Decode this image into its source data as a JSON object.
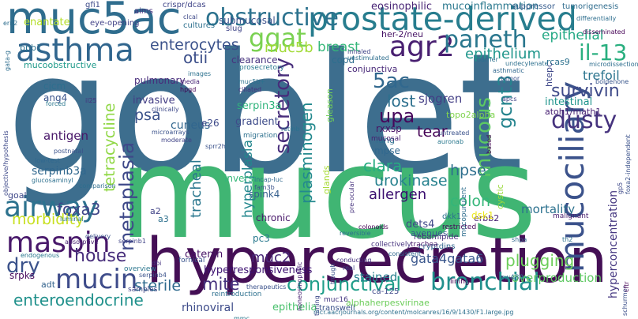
{
  "words": [
    {
      "text": "goblet",
      "color": "#3d6e8e"
    },
    {
      "text": "mucus",
      "color": "#40b573"
    },
    {
      "text": "hypersecretion",
      "color": "#440f55"
    },
    {
      "text": "muc5ac",
      "color": "#2f6d8e"
    },
    {
      "text": "prostate-derived",
      "color": "#277d8e"
    },
    {
      "text": "obstructive",
      "color": "#2c728e"
    },
    {
      "text": "asthma",
      "color": "#31668e"
    },
    {
      "text": "mucociliary",
      "color": "#3b528b"
    },
    {
      "text": "airway",
      "color": "#2c728e"
    },
    {
      "text": "maspin",
      "color": "#48186a"
    },
    {
      "text": "mucin",
      "color": "#3e4c8a"
    },
    {
      "text": "agr2",
      "color": "#481f70"
    },
    {
      "text": "paneth",
      "color": "#2a778e"
    },
    {
      "text": "ggat",
      "color": "#7ad151"
    },
    {
      "text": "bronchial",
      "color": "#21908d"
    },
    {
      "text": "conjunctival",
      "color": "#1f9e89"
    },
    {
      "text": "secretory",
      "color": "#472d7b"
    },
    {
      "text": "metaplasia",
      "color": "#3e4989"
    },
    {
      "text": "dusty",
      "color": "#46337e"
    },
    {
      "text": "il-13",
      "color": "#29af7f"
    },
    {
      "text": "mucous",
      "color": "#5cc863"
    },
    {
      "text": "gcnt3",
      "color": "#25848e"
    },
    {
      "text": "enterocytes",
      "color": "#3b528b"
    },
    {
      "text": "muc5b",
      "color": "#a2da37"
    },
    {
      "text": "breast",
      "color": "#35b779"
    },
    {
      "text": "epithelial",
      "color": "#22a884"
    },
    {
      "text": "epithelium",
      "color": "#1f968b"
    },
    {
      "text": "5ac",
      "color": "#31688e"
    },
    {
      "text": "lost",
      "color": "#2d708e"
    },
    {
      "text": "upa",
      "color": "#46085c"
    },
    {
      "text": "plasminogen",
      "color": "#23898e"
    },
    {
      "text": "tetracycline",
      "color": "#8fd744"
    },
    {
      "text": "otii",
      "color": "#3c4f8a"
    },
    {
      "text": "pulmonary",
      "color": "#472a7a"
    },
    {
      "text": "survivin",
      "color": "#3e4a89"
    },
    {
      "text": "tear",
      "color": "#440154"
    },
    {
      "text": "urokinase",
      "color": "#26818e"
    },
    {
      "text": "clara",
      "color": "#27ad81"
    },
    {
      "text": "allergen",
      "color": "#3b0f70"
    },
    {
      "text": "colon",
      "color": "#34b679"
    },
    {
      "text": "hpse",
      "color": "#2e6f8e"
    },
    {
      "text": "hyperplasia",
      "color": "#24878e"
    },
    {
      "text": "tracheal",
      "color": "#2a778e"
    },
    {
      "text": "foxa3",
      "color": "#404688"
    },
    {
      "text": "morbidity",
      "color": "#c8e020"
    },
    {
      "text": "dry",
      "color": "#3b528b"
    },
    {
      "text": "house",
      "color": "#472d7b"
    },
    {
      "text": "enteroendocrine",
      "color": "#21918c"
    },
    {
      "text": "sterile",
      "color": "#2f6b8e"
    },
    {
      "text": "mite",
      "color": "#46327e"
    },
    {
      "text": "muc2",
      "color": "#482576"
    },
    {
      "text": "plugging",
      "color": "#6ccd5a"
    },
    {
      "text": "stained",
      "color": "#277f8e"
    },
    {
      "text": "gata4gata6",
      "color": "#39568c"
    },
    {
      "text": "overproduction",
      "color": "#5ec962"
    },
    {
      "text": "hyperconcentration",
      "color": "#453781"
    },
    {
      "text": "rhinoviral",
      "color": "#3e4c8a"
    },
    {
      "text": "epithelia",
      "color": "#4ac16d"
    },
    {
      "text": "mortality",
      "color": "#2c718e"
    },
    {
      "text": "trefoil",
      "color": "#2b748e"
    },
    {
      "text": "intestinal",
      "color": "#1f948c"
    },
    {
      "text": "atoh1/math1",
      "color": "#482173"
    },
    {
      "text": "sjogren",
      "color": "#433e85"
    },
    {
      "text": "invasive",
      "color": "#433d84"
    },
    {
      "text": "psa",
      "color": "#3b528b"
    },
    {
      "text": "cuneus",
      "color": "#31668e"
    },
    {
      "text": "serpin3a",
      "color": "#2fb47c"
    },
    {
      "text": "gradient",
      "color": "#3e4c8a"
    },
    {
      "text": "antigen",
      "color": "#481668"
    },
    {
      "text": "serpinb3a",
      "color": "#31688e"
    },
    {
      "text": "enantate",
      "color": "#b5de2b"
    },
    {
      "text": "rxxsp",
      "color": "#471164"
    },
    {
      "text": "mpse",
      "color": "#31688e"
    },
    {
      "text": "spink4",
      "color": "#355f8d"
    },
    {
      "text": "chronic",
      "color": "#48186a"
    },
    {
      "text": "dets4",
      "color": "#3f4788"
    },
    {
      "text": "avenues",
      "color": "#355e8d"
    },
    {
      "text": "inverse",
      "color": "#35b779"
    },
    {
      "text": "pc3",
      "color": "#29798e"
    },
    {
      "text": "a2",
      "color": "#414487"
    },
    {
      "text": "a3",
      "color": "#2d708e"
    },
    {
      "text": "e26",
      "color": "#3e4a89"
    },
    {
      "text": "copd",
      "color": "#2e6e8e"
    },
    {
      "text": "conjunctiva",
      "color": "#482878"
    },
    {
      "text": "clearance",
      "color": "#46327e"
    },
    {
      "text": "her-2/neu",
      "color": "#471365"
    },
    {
      "text": "ang4",
      "color": "#3a548c"
    },
    {
      "text": "cjcm",
      "color": "#2e6f8e"
    },
    {
      "text": "bpb1",
      "color": "#2c718e"
    },
    {
      "text": "mucoobstructive",
      "color": "#1f9a8a"
    },
    {
      "text": "srpks",
      "color": "#46085c"
    },
    {
      "text": "adt",
      "color": "#33638d"
    },
    {
      "text": "goal",
      "color": "#3f4889"
    },
    {
      "text": "eosinophilic",
      "color": "#482475"
    },
    {
      "text": "mucoinflammation",
      "color": "#2a788e"
    },
    {
      "text": "submucosal",
      "color": "#3b518b"
    },
    {
      "text": "topo2alpha",
      "color": "#7fd34e"
    },
    {
      "text": "rcas9",
      "color": "#2c718e"
    },
    {
      "text": "htepc",
      "color": "#3f4889"
    },
    {
      "text": "lung",
      "color": "#2e6e8e"
    },
    {
      "text": "cystic",
      "color": "#9bd93c"
    },
    {
      "text": "erbb2",
      "color": "#482071"
    },
    {
      "text": "dsk1",
      "color": "#eae51a"
    },
    {
      "text": "crispr/dcas",
      "color": "#404588"
    },
    {
      "text": "cultures",
      "color": "#2d708e"
    },
    {
      "text": "catenin",
      "color": "#481467"
    },
    {
      "text": "slug",
      "color": "#404588"
    },
    {
      "text": "aims",
      "color": "#46307e"
    },
    {
      "text": "gfi1",
      "color": "#3e4a89"
    },
    {
      "text": "eye-opening",
      "color": "#414287"
    },
    {
      "text": "suppressor",
      "color": "#365c8d"
    },
    {
      "text": "tumorigenesis",
      "color": "#2f6c8e"
    },
    {
      "text": "restricted",
      "color": "#46075a"
    },
    {
      "text": "dkk1",
      "color": "#2c728e"
    },
    {
      "text": "mucopurulent",
      "color": "#2e6e8e"
    },
    {
      "text": "rebamipide",
      "color": "#472c7a"
    },
    {
      "text": "cryptdins",
      "color": "#31668e"
    },
    {
      "text": "trachea",
      "color": "#48186a"
    },
    {
      "text": "collectively",
      "color": "#46337e"
    },
    {
      "text": "ca-125",
      "color": "#3f4889"
    },
    {
      "text": "mucosal",
      "color": "#482071"
    },
    {
      "text": "glands",
      "color": "#a8db34"
    },
    {
      "text": "gleason",
      "color": "#73d056"
    },
    {
      "text": "sw480",
      "color": "#2d708e"
    },
    {
      "text": "transwell",
      "color": "#3b528b"
    },
    {
      "text": "alphaherpesvirinae",
      "color": "#6ccd5a"
    },
    {
      "text": "samples",
      "color": "#414487"
    },
    {
      "text": "overview",
      "color": "#2a768e"
    },
    {
      "text": "fornical",
      "color": "#3a548c"
    },
    {
      "text": "reintroduction",
      "color": "#2d708e"
    },
    {
      "text": "muc16",
      "color": "#453781"
    },
    {
      "text": "lining",
      "color": "#440154"
    },
    {
      "text": "mcr.aacrjournals.org/content/molcanres/16/9/1430/F1.large.jpg",
      "color": "#2d708e"
    },
    {
      "text": "schurmer",
      "color": "#3c4f8a"
    },
    {
      "text": "malignant",
      "color": "#481d6f"
    },
    {
      "text": "gata-g",
      "color": "#2e6e8e"
    },
    {
      "text": "differentially",
      "color": "#2e6e8e"
    },
    {
      "text": "disseminated",
      "color": "#440154"
    },
    {
      "text": "microdissection",
      "color": "#2e6e8e"
    },
    {
      "text": "boldenone",
      "color": "#39568c"
    },
    {
      "text": "undecylenate",
      "color": "#2d708e"
    },
    {
      "text": "barrier",
      "color": "#2c718e"
    },
    {
      "text": "asthmatic",
      "color": "#31688e"
    },
    {
      "text": "tumor",
      "color": "#3b528b"
    },
    {
      "text": "unstimulated",
      "color": "#2e6e8e"
    },
    {
      "text": "inhaled",
      "color": "#414487"
    },
    {
      "text": "prosecretory",
      "color": "#2a788e"
    },
    {
      "text": "ciliated",
      "color": "#46327e"
    },
    {
      "text": "muc5b+",
      "color": "#2c718e"
    },
    {
      "text": "hpgd",
      "color": "#440154"
    },
    {
      "text": "media",
      "color": "#482576"
    },
    {
      "text": "images",
      "color": "#2c718e"
    },
    {
      "text": "clinically",
      "color": "#3e4989"
    },
    {
      "text": "microarrays",
      "color": "#3b528b"
    },
    {
      "text": "moderate",
      "color": "#414487"
    },
    {
      "text": "sprr2h",
      "color": "#3b528b"
    },
    {
      "text": "migration",
      "color": "#2d708e"
    },
    {
      "text": "il25",
      "color": "#46327e"
    },
    {
      "text": "forced",
      "color": "#2a788e"
    },
    {
      "text": "objective/hypothesis",
      "color": "#3e4989"
    },
    {
      "text": "postnatal",
      "color": "#3b528b"
    },
    {
      "text": "low-test",
      "color": "#31688e"
    },
    {
      "text": "glucosaminyl",
      "color": "#2d708e"
    },
    {
      "text": "comparison",
      "color": "#2e6e8e"
    },
    {
      "text": "luminal",
      "color": "#2a788e"
    },
    {
      "text": "delivery",
      "color": "#3b528b"
    },
    {
      "text": "absorptive",
      "color": "#482071"
    },
    {
      "text": "endogenous",
      "color": "#2a788e"
    },
    {
      "text": "serpinb4",
      "color": "#3b528b"
    },
    {
      "text": "serpinb1",
      "color": "#414487"
    },
    {
      "text": "dbi",
      "color": "#46327e"
    },
    {
      "text": "gp5",
      "color": "#3e4989"
    },
    {
      "text": "foxa2-independent",
      "color": "#3b528b"
    },
    {
      "text": "cftr",
      "color": "#440154"
    },
    {
      "text": "th2",
      "color": "#2c718e"
    },
    {
      "text": "shpa",
      "color": "#31688e"
    },
    {
      "text": "noneosinophilic",
      "color": "#482071"
    },
    {
      "text": "trough",
      "color": "#3b528b"
    },
    {
      "text": "conducting",
      "color": "#46327e"
    },
    {
      "text": "real",
      "color": "#414487"
    },
    {
      "text": "colonoids",
      "color": "#440154"
    },
    {
      "text": "reversible",
      "color": "#2d708e"
    },
    {
      "text": "consistent",
      "color": "#31688e"
    },
    {
      "text": "therapeutics",
      "color": "#3b528b"
    },
    {
      "text": "tuning",
      "color": "#3e4989"
    },
    {
      "text": "auronab",
      "color": "#2a788e"
    },
    {
      "text": "untreated",
      "color": "#3b528b"
    },
    {
      "text": "apcs",
      "color": "#414487"
    },
    {
      "text": "retinb",
      "color": "#2c718e"
    },
    {
      "text": "pre-ocular",
      "color": "#46327e"
    },
    {
      "text": "incap-luc",
      "color": "#31688e"
    },
    {
      "text": "fam3b",
      "color": "#3b528b"
    },
    {
      "text": "ern2",
      "color": "#2e6e8e"
    },
    {
      "text": "clcal",
      "color": "#3e4989"
    },
    {
      "text": "based",
      "color": "#440154"
    },
    {
      "text": "mmc",
      "color": "#2a788e"
    },
    {
      "text": "hyperresponsiveness",
      "color": "#3b0f70"
    }
  ]
}
